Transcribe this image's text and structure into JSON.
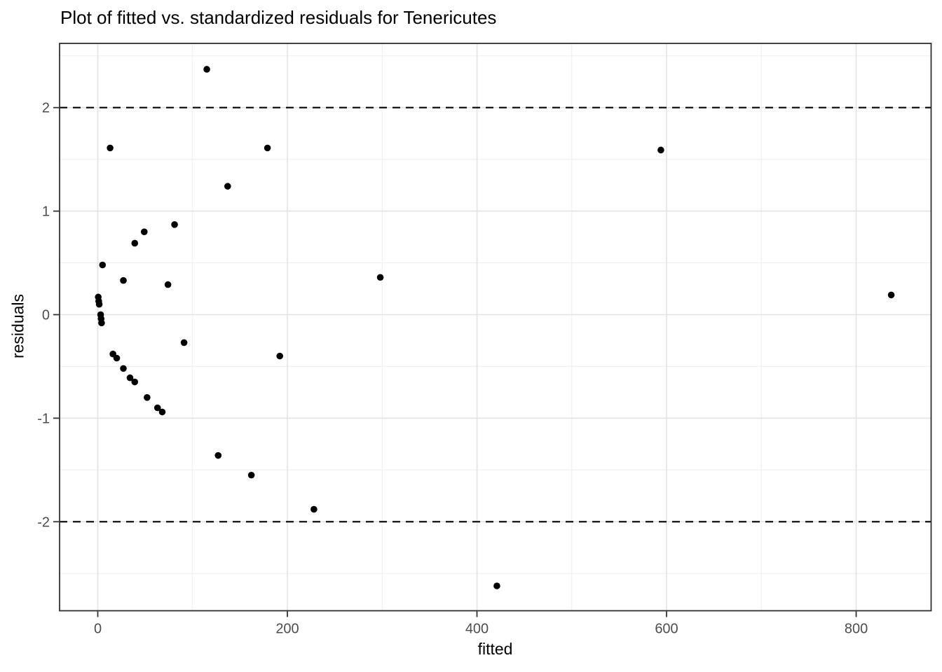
{
  "chart_data": {
    "type": "scatter",
    "title": "Plot of fitted vs. standardized residuals for Tenericutes",
    "xlabel": "fitted",
    "ylabel": "residuals",
    "xlim": [
      -40.3,
      879.1
    ],
    "ylim": [
      -2.86,
      2.62
    ],
    "x_ticks": [
      0,
      200,
      400,
      600,
      800
    ],
    "y_ticks": [
      -2,
      -1,
      0,
      1,
      2
    ],
    "x_minor_ticks": [
      100,
      300,
      500,
      700
    ],
    "y_minor_ticks": [
      -2.5,
      -1.5,
      -0.5,
      0.5,
      1.5,
      2.5
    ],
    "grid": true,
    "legend_position": "none",
    "reference_lines": {
      "y_values": [
        2,
        -2
      ],
      "style": "dashed"
    },
    "points": [
      [
        115,
        2.37
      ],
      [
        13,
        1.61
      ],
      [
        179,
        1.61
      ],
      [
        594,
        1.59
      ],
      [
        137,
        1.24
      ],
      [
        81,
        0.87
      ],
      [
        49,
        0.8
      ],
      [
        39,
        0.69
      ],
      [
        5,
        0.48
      ],
      [
        298,
        0.36
      ],
      [
        27,
        0.33
      ],
      [
        74,
        0.29
      ],
      [
        837,
        0.19
      ],
      [
        0.5,
        0.17
      ],
      [
        1,
        0.13
      ],
      [
        1.5,
        0.1
      ],
      [
        3,
        0.0
      ],
      [
        3.5,
        -0.04
      ],
      [
        4,
        -0.08
      ],
      [
        91,
        -0.27
      ],
      [
        16,
        -0.38
      ],
      [
        20,
        -0.42
      ],
      [
        192,
        -0.4
      ],
      [
        27,
        -0.52
      ],
      [
        34,
        -0.61
      ],
      [
        39,
        -0.65
      ],
      [
        52,
        -0.8
      ],
      [
        63,
        -0.9
      ],
      [
        68,
        -0.94
      ],
      [
        127,
        -1.36
      ],
      [
        162,
        -1.55
      ],
      [
        228,
        -1.88
      ],
      [
        421,
        -2.62
      ]
    ]
  },
  "colors": {
    "point": "#000000",
    "grid_major": "#e3e3e3",
    "grid_minor": "#efefef",
    "panel_border": "#2f2f2f",
    "tick_mark": "#333333",
    "tick_label": "#4d4d4d",
    "reference_line": "#000000",
    "background": "#ffffff"
  }
}
